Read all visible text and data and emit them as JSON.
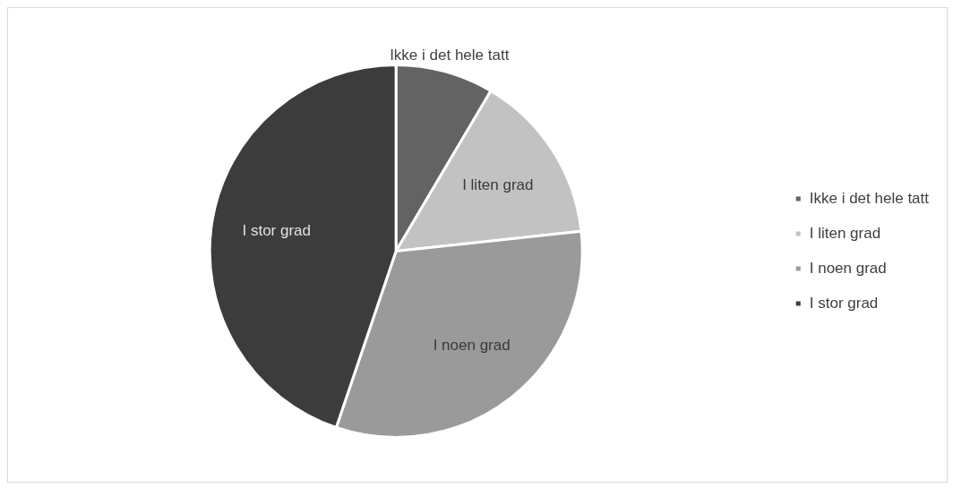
{
  "chart_data": {
    "type": "pie",
    "categories": [
      "Ikke i det hele tatt",
      "I liten grad",
      "I noen grad",
      "I stor grad"
    ],
    "values": [
      8.5,
      14.8,
      31.9,
      44.8
    ],
    "colors": [
      "#636363",
      "#c2c2c2",
      "#9a9a9a",
      "#3c3c3c"
    ],
    "legend": "right"
  }
}
